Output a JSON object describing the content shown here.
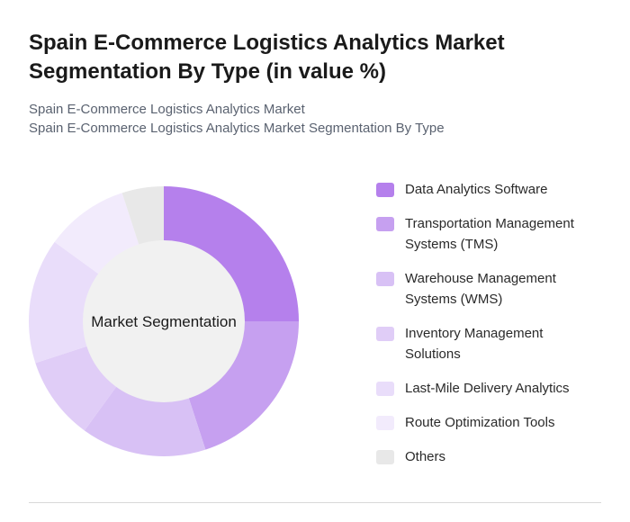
{
  "chart_data": {
    "type": "donut",
    "title": "Spain E-Commerce Logistics Analytics Market Segmentation By Type (in value %)",
    "subtitle": "Spain E-Commerce Logistics Analytics Market",
    "subtitle2": "Spain E-Commerce Logistics Analytics Market Segmentation By Type",
    "center_label": "Market Segmentation",
    "categories": [
      "Data Analytics Software",
      "Transportation Management Systems (TMS)",
      "Warehouse Management Systems (WMS)",
      "Inventory Management Solutions",
      "Last-Mile Delivery Analytics",
      "Route Optimization Tools",
      "Others"
    ],
    "values": [
      25,
      20,
      15,
      10,
      15,
      10,
      5
    ],
    "colors": [
      "#b580ec",
      "#c6a0f0",
      "#d8c1f5",
      "#e0cdf7",
      "#e9ddfa",
      "#f2ebfc",
      "#e8e8e8"
    ]
  }
}
